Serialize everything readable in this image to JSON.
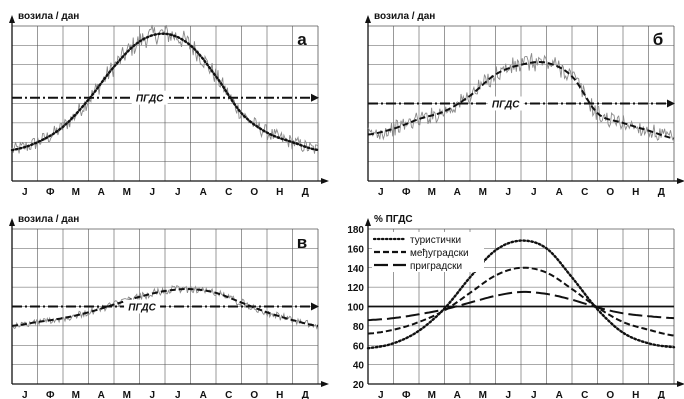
{
  "months": [
    "J",
    "Ф",
    "M",
    "A",
    "M",
    "J",
    "J",
    "A",
    "C",
    "O",
    "H",
    "Д"
  ],
  "colors": {
    "grid": "#555555",
    "line": "#111111",
    "noise": "#8a8a8a"
  },
  "chart_data": [
    {
      "type": "line",
      "panel_letter": "а",
      "ylabel": "возила / дан",
      "reference_label": "ПГДС",
      "x": [
        0,
        1,
        2,
        3,
        4,
        5,
        6,
        7,
        8,
        9,
        10,
        11,
        12
      ],
      "ylim": [
        0,
        8
      ],
      "series": [
        {
          "values": [
            1.6,
            2.0,
            2.8,
            4.2,
            5.9,
            7.2,
            7.6,
            7.0,
            5.4,
            3.5,
            2.5,
            2.0,
            1.6
          ],
          "style": "dotted"
        },
        {
          "values": [
            4.3,
            4.3,
            4.3,
            4.3,
            4.3,
            4.3,
            4.3,
            4.3,
            4.3,
            4.3,
            4.3,
            4.3,
            4.3
          ],
          "style": "dash-dot"
        }
      ]
    },
    {
      "type": "line",
      "panel_letter": "б",
      "ylabel": "возила / дан",
      "reference_label": "ПГДС",
      "x": [
        0,
        1,
        2,
        3,
        4,
        5,
        6,
        7,
        8,
        9,
        10,
        11,
        12
      ],
      "ylim": [
        0,
        8
      ],
      "series": [
        {
          "values": [
            2.4,
            2.7,
            3.2,
            3.6,
            4.4,
            5.5,
            6.0,
            6.1,
            5.4,
            3.5,
            3.0,
            2.6,
            2.2
          ],
          "style": "dashed"
        },
        {
          "values": [
            4.0,
            4.0,
            4.0,
            4.0,
            4.0,
            4.0,
            4.0,
            4.0,
            4.0,
            4.0,
            4.0,
            4.0,
            4.0
          ],
          "style": "dash-dot"
        }
      ]
    },
    {
      "type": "line",
      "panel_letter": "в",
      "ylabel": "возила / дан",
      "reference_label": "ПГДС",
      "x": [
        0,
        1,
        2,
        3,
        4,
        5,
        6,
        7,
        8,
        9,
        10,
        11,
        12
      ],
      "ylim": [
        0,
        8
      ],
      "series": [
        {
          "values": [
            3.0,
            3.2,
            3.4,
            3.7,
            4.1,
            4.5,
            4.8,
            4.9,
            4.7,
            4.2,
            3.7,
            3.3,
            3.0
          ],
          "style": "dashed"
        },
        {
          "values": [
            4.0,
            4.0,
            4.0,
            4.0,
            4.0,
            4.0,
            4.0,
            4.0,
            4.0,
            4.0,
            4.0,
            4.0,
            4.0
          ],
          "style": "dash-dot"
        }
      ]
    },
    {
      "type": "line",
      "ylabel": "% ПГДС",
      "yticks": [
        20,
        40,
        60,
        80,
        100,
        120,
        140,
        160,
        180
      ],
      "ylim": [
        20,
        180
      ],
      "x": [
        0,
        1,
        2,
        3,
        4,
        5,
        6,
        7,
        8,
        9,
        10,
        11,
        12
      ],
      "legend": [
        "туристички",
        "међуградски",
        "приградски"
      ],
      "series": [
        {
          "name": "туристички",
          "style": "dotted",
          "values": [
            57,
            62,
            75,
            98,
            130,
            158,
            168,
            160,
            130,
            97,
            73,
            62,
            58
          ]
        },
        {
          "name": "међуградски",
          "style": "dashed",
          "values": [
            72,
            76,
            84,
            96,
            114,
            132,
            140,
            135,
            118,
            99,
            84,
            76,
            70
          ]
        },
        {
          "name": "приградски",
          "style": "longdash",
          "values": [
            86,
            88,
            92,
            97,
            104,
            111,
            115,
            113,
            107,
            99,
            93,
            90,
            88
          ]
        },
        {
          "values": [
            100,
            100,
            100,
            100,
            100,
            100,
            100,
            100,
            100,
            100,
            100,
            100,
            100
          ],
          "style": "solid"
        }
      ]
    }
  ]
}
